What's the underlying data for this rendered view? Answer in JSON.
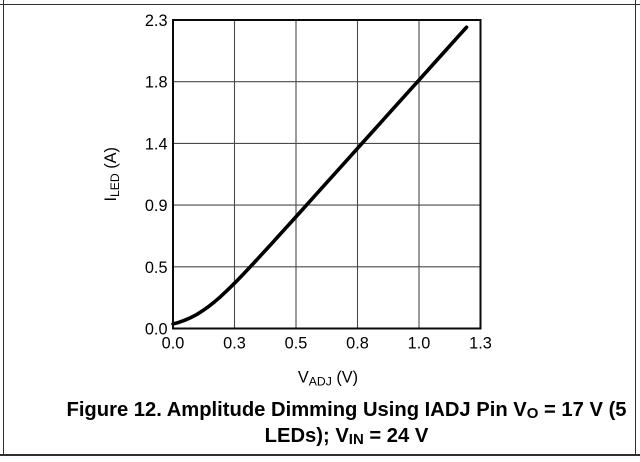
{
  "figure": {
    "caption": {
      "full_text": "Figure 12. Amplitude Dimming Using IADJ Pin VO = 17 V (5 LEDs); VIN = 24 V",
      "line1_pre": "Figure 12. Amplitude Dimming Using IADJ Pin V",
      "line1_sub": "O",
      "line1_post": " = 17 V (5",
      "line2_pre": "LEDs); V",
      "line2_sub": "IN",
      "line2_post": " = 24 V"
    }
  },
  "chart_data": {
    "type": "line",
    "title": "",
    "xlabel": {
      "main": "V",
      "sub": "ADJ",
      "unit": " (V)"
    },
    "ylabel": {
      "main": "I",
      "sub": "LED",
      "unit": " (A)"
    },
    "xlim": [
      0,
      1.3
    ],
    "ylim": [
      0,
      2.3
    ],
    "x_tick_labels": [
      "0.0",
      "0.3",
      "0.5",
      "0.8",
      "1.0",
      "1.3"
    ],
    "x_tick_values": [
      0,
      0.26,
      0.52,
      0.78,
      1.04,
      1.3
    ],
    "y_tick_labels": [
      "0.0",
      "0.5",
      "0.9",
      "1.4",
      "1.8",
      "2.3"
    ],
    "y_tick_values": [
      0,
      0.46,
      0.92,
      1.38,
      1.84,
      2.3
    ],
    "grid": true,
    "legend": false,
    "series": [
      {
        "name": "ILED vs VADJ",
        "x": [
          0.0,
          0.025,
          0.05,
          0.075,
          0.1,
          0.125,
          0.15,
          0.175,
          0.2,
          0.225,
          0.25,
          0.275,
          0.3,
          0.325,
          0.35,
          0.375,
          0.4,
          0.425,
          0.45,
          0.475,
          0.5,
          0.55,
          0.6,
          0.65,
          0.7,
          0.75,
          0.8,
          0.85,
          0.9,
          0.95,
          1.0,
          1.05,
          1.1,
          1.15,
          1.2,
          1.241
        ],
        "y": [
          0.034,
          0.046,
          0.062,
          0.081,
          0.104,
          0.132,
          0.163,
          0.198,
          0.236,
          0.277,
          0.32,
          0.364,
          0.41,
          0.457,
          0.504,
          0.552,
          0.6,
          0.648,
          0.697,
          0.746,
          0.794,
          0.892,
          0.99,
          1.088,
          1.186,
          1.284,
          1.382,
          1.48,
          1.578,
          1.676,
          1.774,
          1.872,
          1.97,
          2.068,
          2.166,
          2.246
        ]
      }
    ],
    "colors": {
      "curve": "#000000",
      "grid": "#4a4a4a",
      "frame": "#0a0a0a"
    }
  }
}
